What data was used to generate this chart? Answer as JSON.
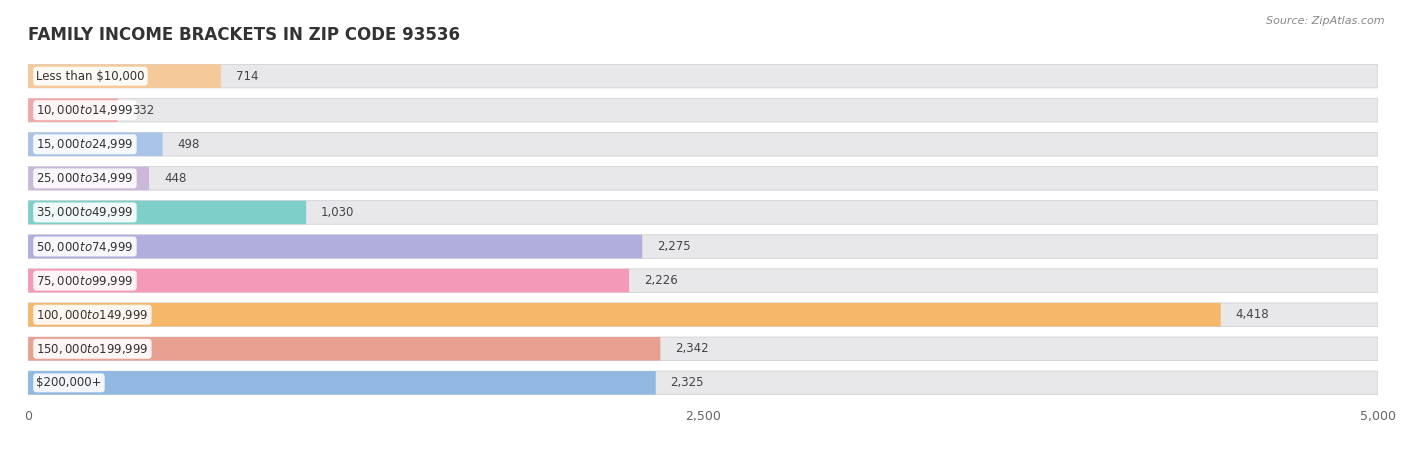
{
  "title": "FAMILY INCOME BRACKETS IN ZIP CODE 93536",
  "source": "Source: ZipAtlas.com",
  "categories": [
    "Less than $10,000",
    "$10,000 to $14,999",
    "$15,000 to $24,999",
    "$25,000 to $34,999",
    "$35,000 to $49,999",
    "$50,000 to $74,999",
    "$75,000 to $99,999",
    "$100,000 to $149,999",
    "$150,000 to $199,999",
    "$200,000+"
  ],
  "values": [
    714,
    332,
    498,
    448,
    1030,
    2275,
    2226,
    4418,
    2342,
    2325
  ],
  "bar_colors": [
    "#f5c99a",
    "#f0a9a9",
    "#a9c4e8",
    "#c9b8d8",
    "#7ecfca",
    "#b0aedd",
    "#f599b8",
    "#f5b86a",
    "#e8a090",
    "#90b8e0"
  ],
  "xlim": [
    0,
    5000
  ],
  "xticks": [
    0,
    2500,
    5000
  ],
  "xtick_labels": [
    "0",
    "2,500",
    "5,000"
  ],
  "fig_bg": "#ffffff",
  "bar_bg_color": "#e8e8eb",
  "title_fontsize": 12,
  "label_fontsize": 8.5,
  "value_fontsize": 8.5,
  "source_fontsize": 8
}
